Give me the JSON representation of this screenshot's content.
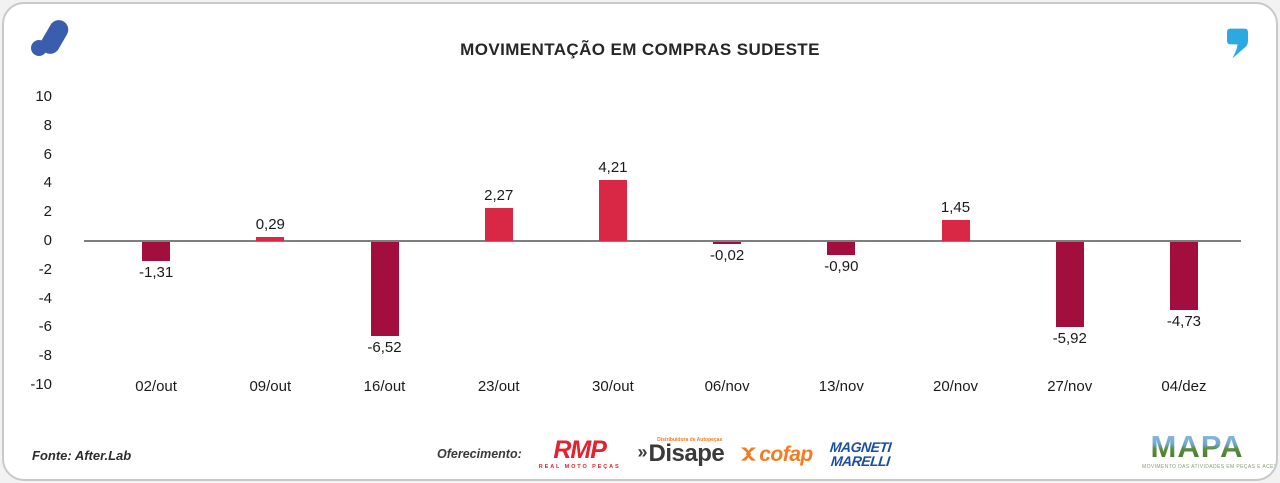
{
  "header": {
    "title": "MOVIMENTAÇÃO EM COMPRAS SUDESTE"
  },
  "brand": {
    "afterlab_color": "#3A5DAD",
    "quote_color": "#2BA9E0"
  },
  "chart_data": {
    "type": "bar",
    "title": "MOVIMENTAÇÃO EM COMPRAS SUDESTE",
    "categories": [
      "02/out",
      "09/out",
      "16/out",
      "23/out",
      "30/out",
      "06/nov",
      "13/nov",
      "20/nov",
      "27/nov",
      "04/dez"
    ],
    "values": [
      -1.31,
      0.29,
      -6.52,
      2.27,
      4.21,
      -0.02,
      -0.9,
      1.45,
      -5.92,
      -4.73
    ],
    "value_labels": [
      "-1,31",
      "0,29",
      "-6,52",
      "2,27",
      "4,21",
      "-0,02",
      "-0,90",
      "1,45",
      "-5,92",
      "-4,73"
    ],
    "ylim": [
      -10,
      10
    ],
    "yticks": [
      10,
      8,
      6,
      4,
      2,
      0,
      -2,
      -4,
      -6,
      -8,
      -10
    ],
    "grid": false,
    "legend": false,
    "colors": {
      "positive": "#D92845",
      "negative": "#A20E3E",
      "axis_line": "#7E7E7E"
    }
  },
  "footer": {
    "source": "Fonte: After.Lab",
    "offer_label": "Oferecimento:",
    "sponsors": {
      "rmp": {
        "name": "RMP",
        "tagline": "REAL MOTO PEÇAS",
        "color": "#E4212D"
      },
      "disape": {
        "prefix": "»",
        "name": "Disape",
        "tagline": "Distribuidora de Autopeças",
        "color": "#3A3A3A",
        "accent": "#F47B20"
      },
      "cofap": {
        "name": "cofap",
        "color": "#F47B20"
      },
      "magneti_marelli": {
        "line1": "MAGNETI",
        "line2": "MARELLI",
        "color": "#1B4F9C"
      }
    },
    "mapa": {
      "name": "MAPA",
      "tagline": "MOVIMENTO DAS ATIVIDADES EM PEÇAS E ACESSÓRIOS"
    }
  }
}
